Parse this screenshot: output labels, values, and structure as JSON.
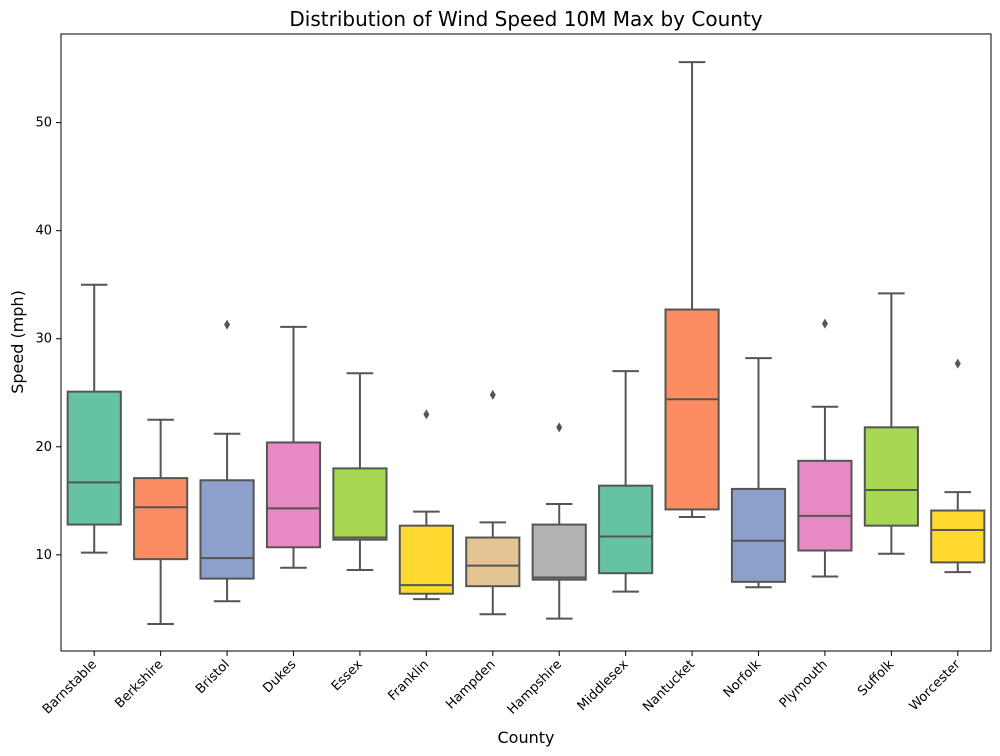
{
  "chart_data": {
    "type": "box",
    "title": "Distribution of Wind Speed 10M Max by County",
    "xlabel": "County",
    "ylabel": "Speed (mph)",
    "ylim": [
      1.1,
      58.2
    ],
    "yticks": [
      10,
      20,
      30,
      40,
      50
    ],
    "grid": false,
    "categories": [
      "Barnstable",
      "Berkshire",
      "Bristol",
      "Dukes",
      "Essex",
      "Franklin",
      "Hampden",
      "Hampshire",
      "Middlesex",
      "Nantucket",
      "Norfolk",
      "Plymouth",
      "Suffolk",
      "Worcester"
    ],
    "colors": [
      "#66c2a5",
      "#fc8d62",
      "#8da0cb",
      "#e78ac3",
      "#a6d854",
      "#ffd92f",
      "#e5c494",
      "#b3b3b3",
      "#66c2a5",
      "#fc8d62",
      "#8da0cb",
      "#e78ac3",
      "#a6d854",
      "#ffd92f"
    ],
    "boxes": [
      {
        "whisker_low": 10.2,
        "q1": 12.8,
        "median": 16.7,
        "q3": 25.1,
        "whisker_high": 35.0,
        "outliers": []
      },
      {
        "whisker_low": 3.6,
        "q1": 9.6,
        "median": 14.4,
        "q3": 17.1,
        "whisker_high": 22.5,
        "outliers": []
      },
      {
        "whisker_low": 5.7,
        "q1": 7.8,
        "median": 9.7,
        "q3": 16.9,
        "whisker_high": 21.2,
        "outliers": [
          31.3
        ]
      },
      {
        "whisker_low": 8.8,
        "q1": 10.7,
        "median": 14.3,
        "q3": 20.4,
        "whisker_high": 31.1,
        "outliers": []
      },
      {
        "whisker_low": 8.6,
        "q1": 11.4,
        "median": 11.6,
        "q3": 18.0,
        "whisker_high": 26.8,
        "outliers": []
      },
      {
        "whisker_low": 5.9,
        "q1": 6.4,
        "median": 7.2,
        "q3": 12.7,
        "whisker_high": 14.0,
        "outliers": [
          23.0
        ]
      },
      {
        "whisker_low": 4.5,
        "q1": 7.1,
        "median": 9.0,
        "q3": 11.6,
        "whisker_high": 13.0,
        "outliers": [
          24.8
        ]
      },
      {
        "whisker_low": 4.1,
        "q1": 7.7,
        "median": 7.9,
        "q3": 12.8,
        "whisker_high": 14.7,
        "outliers": [
          21.8
        ]
      },
      {
        "whisker_low": 6.6,
        "q1": 8.3,
        "median": 11.7,
        "q3": 16.4,
        "whisker_high": 27.0,
        "outliers": []
      },
      {
        "whisker_low": 13.5,
        "q1": 14.2,
        "median": 24.4,
        "q3": 32.7,
        "whisker_high": 55.6,
        "outliers": []
      },
      {
        "whisker_low": 7.0,
        "q1": 7.5,
        "median": 11.3,
        "q3": 16.1,
        "whisker_high": 28.2,
        "outliers": []
      },
      {
        "whisker_low": 8.0,
        "q1": 10.4,
        "median": 13.6,
        "q3": 18.7,
        "whisker_high": 23.7,
        "outliers": [
          31.4
        ]
      },
      {
        "whisker_low": 10.1,
        "q1": 12.7,
        "median": 16.0,
        "q3": 21.8,
        "whisker_high": 34.2,
        "outliers": []
      },
      {
        "whisker_low": 8.4,
        "q1": 9.3,
        "median": 12.3,
        "q3": 14.1,
        "whisker_high": 15.8,
        "outliers": [
          27.7
        ]
      }
    ]
  }
}
